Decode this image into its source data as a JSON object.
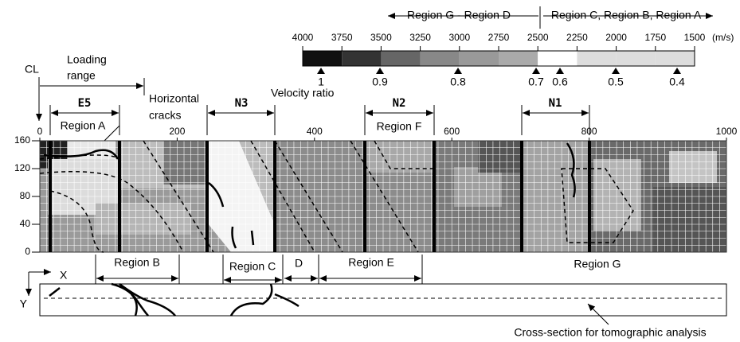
{
  "color_scale": {
    "left_arrow": "Region G - Region D",
    "right_arrow": "Region C, Region B, Region A",
    "ticks": [
      "4000",
      "3750",
      "3500",
      "3250",
      "3000",
      "2750",
      "2500",
      "2250",
      "2000",
      "1750",
      "1500"
    ],
    "unit": "(m/s)",
    "ratio_label": "Velocity ratio",
    "ratio_ticks": [
      "1",
      "0.9",
      "0.8",
      "0.7",
      "0.6",
      "0.5",
      "0.4"
    ]
  },
  "annotations": {
    "cl": "CL",
    "loading": [
      "Loading",
      "range"
    ],
    "cracks": [
      "Horizontal",
      "cracks"
    ],
    "cross_section": "Cross-section for tomographic analysis",
    "x_axis": "X",
    "y_axis": "Y"
  },
  "sensors": [
    "E5",
    "N3",
    "N2",
    "N1"
  ],
  "regions": {
    "a": "Region A",
    "f": "Region F",
    "b": "Region B",
    "c": "Region C",
    "d": "D",
    "e": "Region E",
    "g": "Region G"
  },
  "model": {
    "xticks": [
      0,
      200,
      400,
      600,
      800,
      1000
    ],
    "yticks": [
      0,
      40,
      80,
      120,
      160
    ]
  }
}
